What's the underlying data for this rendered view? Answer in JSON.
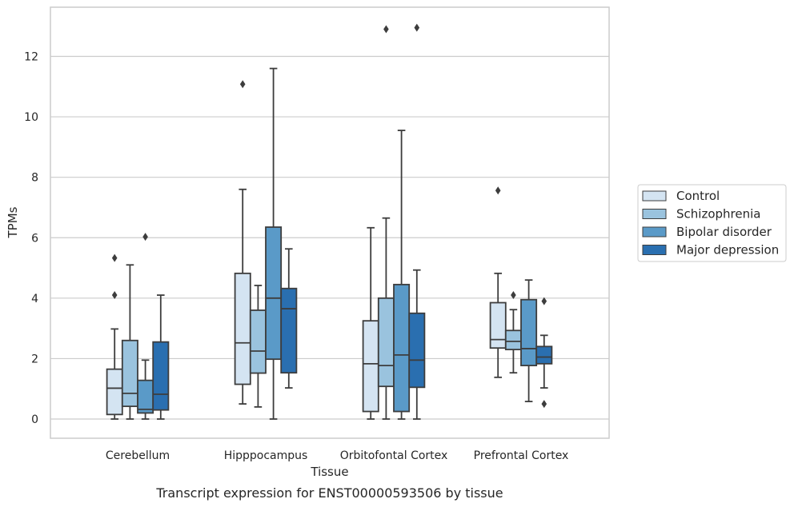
{
  "caption": "Transcript expression for ENST00000593506 by tissue",
  "chart_data": {
    "type": "box",
    "xlabel": "Tissue",
    "ylabel": "TPMs",
    "ylim": [
      -0.65,
      13.6
    ],
    "yticks": [
      0,
      2,
      4,
      6,
      8,
      10,
      12
    ],
    "grid": "horizontal",
    "legend_position": "right",
    "categories": [
      "Cerebellum",
      "Hipppocampus",
      "Orbitofontal Cortex",
      "Prefrontal Cortex"
    ],
    "series": [
      {
        "name": "Control",
        "color": "#d4e4f2",
        "boxes": [
          {
            "whisker_low": 0.0,
            "q1": 0.15,
            "median": 1.02,
            "q3": 1.65,
            "whisker_high": 2.98,
            "outliers": [
              4.1,
              5.33
            ]
          },
          {
            "whisker_low": 0.5,
            "q1": 1.15,
            "median": 2.52,
            "q3": 4.82,
            "whisker_high": 7.6,
            "outliers": [
              11.08
            ]
          },
          {
            "whisker_low": 0.0,
            "q1": 0.25,
            "median": 1.83,
            "q3": 3.25,
            "whisker_high": 6.33,
            "outliers": []
          },
          {
            "whisker_low": 1.38,
            "q1": 2.35,
            "median": 2.63,
            "q3": 3.85,
            "whisker_high": 4.82,
            "outliers": [
              7.56
            ]
          }
        ]
      },
      {
        "name": "Schizophrenia",
        "color": "#9ac3de",
        "boxes": [
          {
            "whisker_low": 0.0,
            "q1": 0.42,
            "median": 0.85,
            "q3": 2.6,
            "whisker_high": 5.1,
            "outliers": []
          },
          {
            "whisker_low": 0.4,
            "q1": 1.52,
            "median": 2.25,
            "q3": 3.6,
            "whisker_high": 4.42,
            "outliers": []
          },
          {
            "whisker_low": 0.0,
            "q1": 1.08,
            "median": 1.77,
            "q3": 4.0,
            "whisker_high": 6.65,
            "outliers": [
              12.9
            ]
          },
          {
            "whisker_low": 1.53,
            "q1": 2.3,
            "median": 2.57,
            "q3": 2.93,
            "whisker_high": 3.62,
            "outliers": [
              4.1
            ]
          }
        ]
      },
      {
        "name": "Bipolar disorder",
        "color": "#5a9ac8",
        "boxes": [
          {
            "whisker_low": 0.0,
            "q1": 0.2,
            "median": 0.32,
            "q3": 1.28,
            "whisker_high": 1.95,
            "outliers": [
              6.03
            ]
          },
          {
            "whisker_low": 0.0,
            "q1": 1.98,
            "median": 4.0,
            "q3": 6.35,
            "whisker_high": 11.6,
            "outliers": []
          },
          {
            "whisker_low": 0.0,
            "q1": 0.25,
            "median": 2.12,
            "q3": 4.45,
            "whisker_high": 9.55,
            "outliers": []
          },
          {
            "whisker_low": 0.58,
            "q1": 1.77,
            "median": 2.33,
            "q3": 3.95,
            "whisker_high": 4.6,
            "outliers": []
          }
        ]
      },
      {
        "name": "Major depression",
        "color": "#2a6fb0",
        "boxes": [
          {
            "whisker_low": 0.0,
            "q1": 0.3,
            "median": 0.82,
            "q3": 2.55,
            "whisker_high": 4.1,
            "outliers": []
          },
          {
            "whisker_low": 1.03,
            "q1": 1.53,
            "median": 3.65,
            "q3": 4.32,
            "whisker_high": 5.63,
            "outliers": []
          },
          {
            "whisker_low": 0.0,
            "q1": 1.05,
            "median": 1.95,
            "q3": 3.5,
            "whisker_high": 4.93,
            "outliers": [
              12.95
            ]
          },
          {
            "whisker_low": 1.03,
            "q1": 1.83,
            "median": 2.05,
            "q3": 2.4,
            "whisker_high": 2.77,
            "outliers": [
              0.5,
              3.9
            ]
          }
        ]
      }
    ]
  }
}
